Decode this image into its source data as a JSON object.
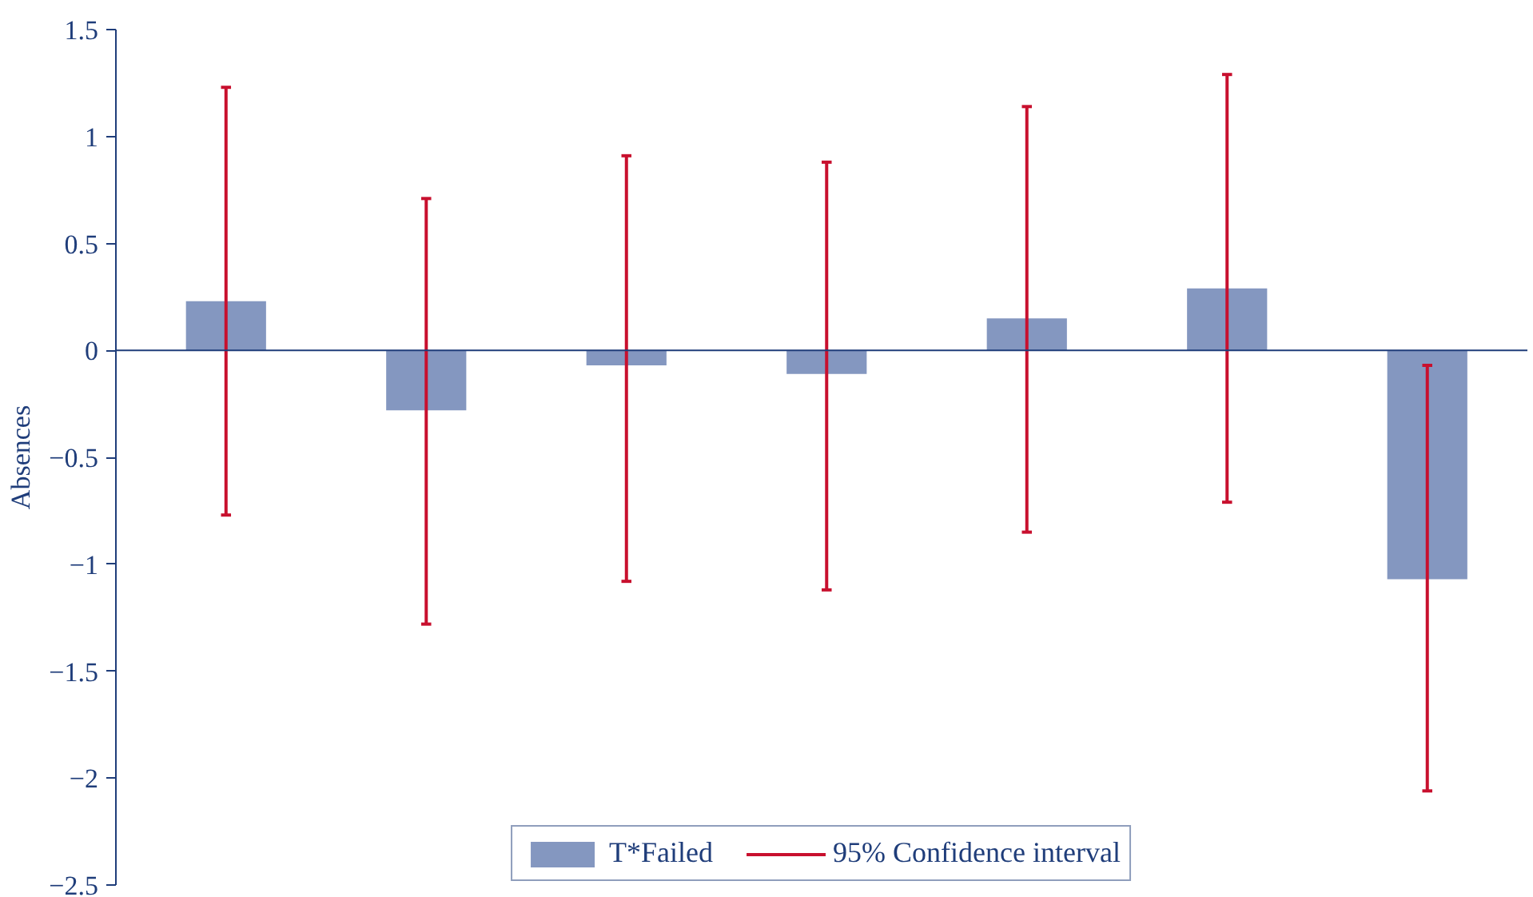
{
  "chart_data": {
    "type": "bar",
    "ylabel": "Absences",
    "categories": [
      null,
      null,
      null,
      null,
      null,
      null,
      null
    ],
    "series": [
      {
        "name": "T*Failed",
        "color": "#8497c0",
        "values": [
          0.23,
          -0.28,
          -0.07,
          -0.11,
          0.15,
          0.29,
          -1.07
        ],
        "errors": [
          [
            -0.77,
            1.23
          ],
          [
            -1.28,
            0.71
          ],
          [
            -1.08,
            0.91
          ],
          [
            -1.12,
            0.88
          ],
          [
            -0.85,
            1.14
          ],
          [
            -0.71,
            1.29
          ],
          [
            -2.06,
            -0.07
          ]
        ]
      }
    ],
    "annotations": [
      "95% Confidence interval"
    ],
    "ref_lines": [
      {
        "axis": "y",
        "value": 0,
        "color": "#1f3d7a"
      }
    ],
    "ylim": [
      -2.5,
      1.5
    ],
    "yticks": [
      {
        "value": -2.5,
        "label": "−2.5"
      },
      {
        "value": -2,
        "label": "−2"
      },
      {
        "value": -1.5,
        "label": "−1.5"
      },
      {
        "value": -1,
        "label": "−1"
      },
      {
        "value": -0.5,
        "label": "−0.5"
      },
      0,
      0.5,
      1,
      1.5
    ],
    "grid": false,
    "legend": "bottom"
  }
}
